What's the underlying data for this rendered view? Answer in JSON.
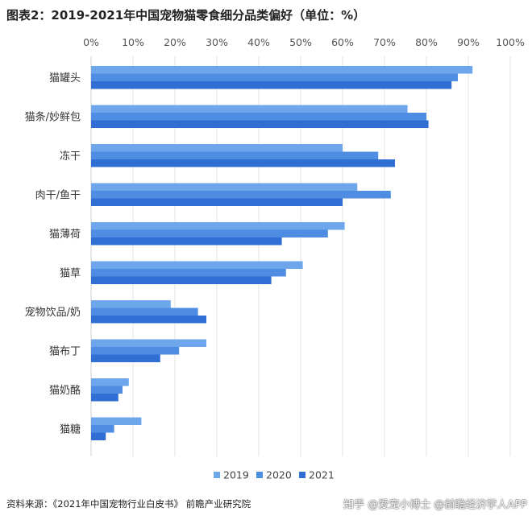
{
  "title": "图表2：2019-2021年中国宠物猫零食细分品类偏好（单位：%）",
  "source": "资料来源：《2021年中国宠物行业白皮书》 前瞻产业研究院",
  "credit": "知乎 @爱宠小博士 @前瞻经济学人APP",
  "colors": {
    "2019": "#6ea6ec",
    "2020": "#4f8de3",
    "2021": "#2f6fd3"
  },
  "chart_data": {
    "type": "bar",
    "orientation": "horizontal",
    "title": "图表2：2019-2021年中国宠物猫零食细分品类偏好（单位：%）",
    "categories": [
      "猫罐头",
      "猫条/妙鲜包",
      "冻干",
      "肉干/鱼干",
      "猫薄荷",
      "猫草",
      "宠物饮品/奶",
      "猫布丁",
      "猫奶酪",
      "猫糖"
    ],
    "series": [
      {
        "name": "2019",
        "values": [
          91,
          75.5,
          60,
          63.5,
          60.5,
          50.5,
          19,
          27.5,
          9,
          12
        ]
      },
      {
        "name": "2020",
        "values": [
          87.5,
          80,
          68.5,
          71.5,
          56.5,
          46.5,
          25.5,
          21,
          7.5,
          5.5
        ]
      },
      {
        "name": "2021",
        "values": [
          86,
          80.5,
          72.5,
          60,
          45.5,
          43,
          27.5,
          16.5,
          6.5,
          3.5
        ]
      }
    ],
    "xlim": [
      0,
      100
    ],
    "xticks": [
      "0%",
      "10%",
      "20%",
      "30%",
      "40%",
      "50%",
      "60%",
      "70%",
      "80%",
      "90%",
      "100%"
    ],
    "legend": "bottom",
    "grid": true
  }
}
